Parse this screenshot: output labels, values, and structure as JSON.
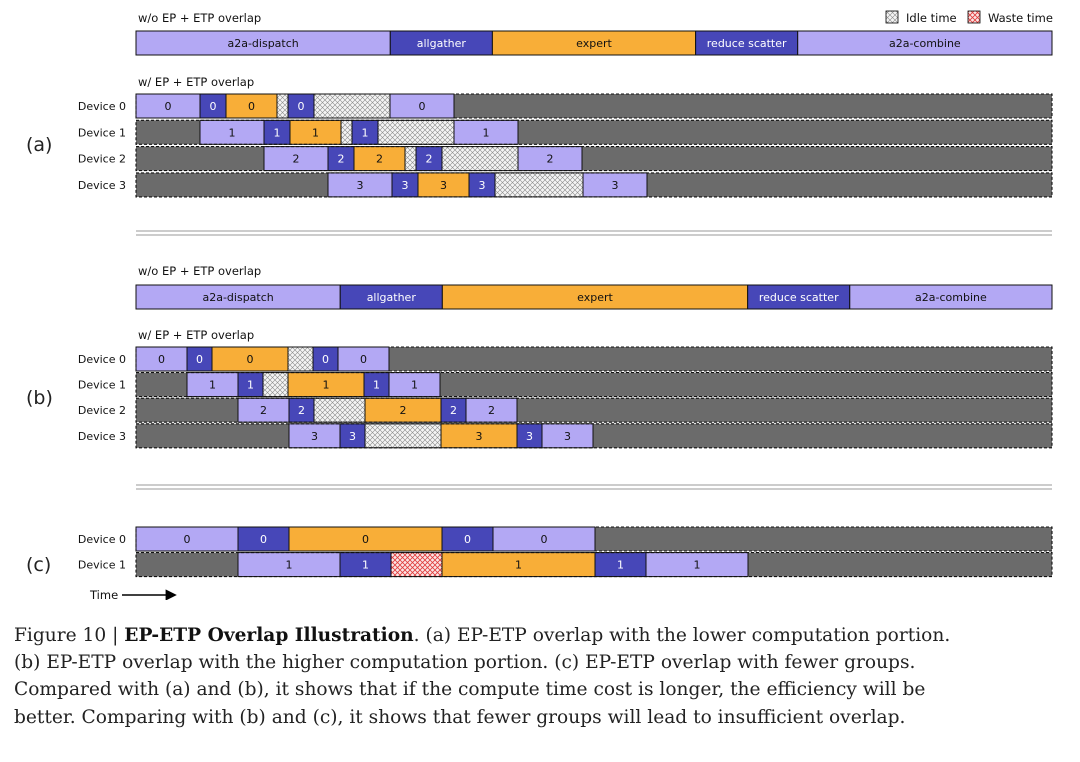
{
  "legend": {
    "idle": "Idle time",
    "waste": "Waste time"
  },
  "time_label": "Time",
  "colors": {
    "dispatch": "#b3a8f4",
    "allgather": "#4747b8",
    "expert": "#f8ae38",
    "reduce": "#4747b8",
    "combine": "#b3a8f4",
    "comm_dark": "#4747b8",
    "comm_light": "#b3a8f4",
    "gray": "#6b6b6b",
    "waste": "#e03c3c"
  },
  "panels": [
    {
      "label": "(a)",
      "top_title": "w/o EP + ETP overlap",
      "bottom_title": "w/ EP + ETP overlap",
      "baseline": [
        {
          "label": "a2a-dispatch",
          "color": "dispatch",
          "dur": 254
        },
        {
          "label": "allgather",
          "color": "allgather",
          "dur": 102
        },
        {
          "label": "expert",
          "color": "expert",
          "dur": 203
        },
        {
          "label": "reduce scatter",
          "color": "reduce",
          "dur": 102
        },
        {
          "label": "a2a-combine",
          "color": "combine",
          "dur": 254
        }
      ],
      "devices": [
        {
          "name": "Device 0",
          "segments": [
            {
              "t": "light",
              "label": "0",
              "dur": 64
            },
            {
              "t": "dark",
              "label": "0",
              "dur": 26
            },
            {
              "t": "expert",
              "label": "0",
              "dur": 51
            },
            {
              "t": "idle",
              "dur": 11
            },
            {
              "t": "dark",
              "label": "0",
              "dur": 26
            },
            {
              "t": "idle",
              "dur": 76
            },
            {
              "t": "light",
              "label": "0",
              "dur": 64
            }
          ]
        },
        {
          "name": "Device 1",
          "segments": [
            {
              "t": "gray",
              "dur": 64
            },
            {
              "t": "light",
              "label": "1",
              "dur": 64
            },
            {
              "t": "dark",
              "label": "1",
              "dur": 26
            },
            {
              "t": "expert",
              "label": "1",
              "dur": 51
            },
            {
              "t": "idle",
              "dur": 11
            },
            {
              "t": "dark",
              "label": "1",
              "dur": 26
            },
            {
              "t": "idle",
              "dur": 76
            },
            {
              "t": "light",
              "label": "1",
              "dur": 64
            }
          ]
        },
        {
          "name": "Device 2",
          "segments": [
            {
              "t": "gray",
              "dur": 128
            },
            {
              "t": "light",
              "label": "2",
              "dur": 64
            },
            {
              "t": "dark",
              "label": "2",
              "dur": 26
            },
            {
              "t": "expert",
              "label": "2",
              "dur": 51
            },
            {
              "t": "idle",
              "dur": 11
            },
            {
              "t": "dark",
              "label": "2",
              "dur": 26
            },
            {
              "t": "idle",
              "dur": 76
            },
            {
              "t": "light",
              "label": "2",
              "dur": 64
            }
          ]
        },
        {
          "name": "Device 3",
          "segments": [
            {
              "t": "gray",
              "dur": 192
            },
            {
              "t": "light",
              "label": "3",
              "dur": 64
            },
            {
              "t": "dark",
              "label": "3",
              "dur": 26
            },
            {
              "t": "expert",
              "label": "3",
              "dur": 51
            },
            {
              "t": "dark",
              "label": "3",
              "dur": 26
            },
            {
              "t": "idle",
              "dur": 88
            },
            {
              "t": "light",
              "label": "3",
              "dur": 64
            }
          ]
        }
      ]
    },
    {
      "label": "(b)",
      "top_title": "w/o EP + ETP overlap",
      "bottom_title": "w/ EP + ETP overlap",
      "baseline": [
        {
          "label": "a2a-dispatch",
          "color": "dispatch",
          "dur": 204
        },
        {
          "label": "allgather",
          "color": "allgather",
          "dur": 102
        },
        {
          "label": "expert",
          "color": "expert",
          "dur": 305
        },
        {
          "label": "reduce scatter",
          "color": "reduce",
          "dur": 102
        },
        {
          "label": "a2a-combine",
          "color": "combine",
          "dur": 202
        }
      ],
      "devices": [
        {
          "name": "Device 0",
          "segments": [
            {
              "t": "light",
              "label": "0",
              "dur": 51
            },
            {
              "t": "dark",
              "label": "0",
              "dur": 25
            },
            {
              "t": "expert",
              "label": "0",
              "dur": 76
            },
            {
              "t": "idle",
              "dur": 25
            },
            {
              "t": "dark",
              "label": "0",
              "dur": 25
            },
            {
              "t": "light",
              "label": "0",
              "dur": 51
            }
          ]
        },
        {
          "name": "Device 1",
          "segments": [
            {
              "t": "gray",
              "dur": 51
            },
            {
              "t": "light",
              "label": "1",
              "dur": 51
            },
            {
              "t": "dark",
              "label": "1",
              "dur": 25
            },
            {
              "t": "idle",
              "dur": 25
            },
            {
              "t": "expert",
              "label": "1",
              "dur": 76
            },
            {
              "t": "dark",
              "label": "1",
              "dur": 25
            },
            {
              "t": "light",
              "label": "1",
              "dur": 51
            }
          ]
        },
        {
          "name": "Device 2",
          "segments": [
            {
              "t": "gray",
              "dur": 102
            },
            {
              "t": "light",
              "label": "2",
              "dur": 51
            },
            {
              "t": "dark",
              "label": "2",
              "dur": 25
            },
            {
              "t": "idle",
              "dur": 51
            },
            {
              "t": "expert",
              "label": "2",
              "dur": 76
            },
            {
              "t": "dark",
              "label": "2",
              "dur": 25
            },
            {
              "t": "light",
              "label": "2",
              "dur": 51
            }
          ]
        },
        {
          "name": "Device 3",
          "segments": [
            {
              "t": "gray",
              "dur": 153
            },
            {
              "t": "light",
              "label": "3",
              "dur": 51
            },
            {
              "t": "dark",
              "label": "3",
              "dur": 25
            },
            {
              "t": "idle",
              "dur": 76
            },
            {
              "t": "expert",
              "label": "3",
              "dur": 76
            },
            {
              "t": "dark",
              "label": "3",
              "dur": 25
            },
            {
              "t": "light",
              "label": "3",
              "dur": 51
            }
          ]
        }
      ]
    },
    {
      "label": "(c)",
      "devices": [
        {
          "name": "Device 0",
          "segments": [
            {
              "t": "light",
              "label": "0",
              "dur": 102
            },
            {
              "t": "dark",
              "label": "0",
              "dur": 51
            },
            {
              "t": "expert",
              "label": "0",
              "dur": 153
            },
            {
              "t": "dark",
              "label": "0",
              "dur": 51
            },
            {
              "t": "light",
              "label": "0",
              "dur": 102
            }
          ]
        },
        {
          "name": "Device 1",
          "segments": [
            {
              "t": "gray",
              "dur": 102
            },
            {
              "t": "light",
              "label": "1",
              "dur": 102
            },
            {
              "t": "dark",
              "label": "1",
              "dur": 51
            },
            {
              "t": "waste",
              "dur": 51
            },
            {
              "t": "expert",
              "label": "1",
              "dur": 153
            },
            {
              "t": "dark",
              "label": "1",
              "dur": 51
            },
            {
              "t": "light",
              "label": "1",
              "dur": 102
            }
          ]
        }
      ]
    }
  ],
  "caption": {
    "figure": "Figure 10 | ",
    "title": "EP-ETP Overlap Illustration",
    "lines": [
      ". (a) EP-ETP overlap with the lower computation portion.",
      "(b) EP-ETP overlap with the higher computation portion.  (c) EP-ETP overlap with fewer groups.",
      "Compared with (a) and (b), it shows that if the compute time cost is longer, the efficiency will be",
      "better. Comparing with (b) and (c), it shows that fewer groups will lead to insufficient overlap."
    ]
  }
}
